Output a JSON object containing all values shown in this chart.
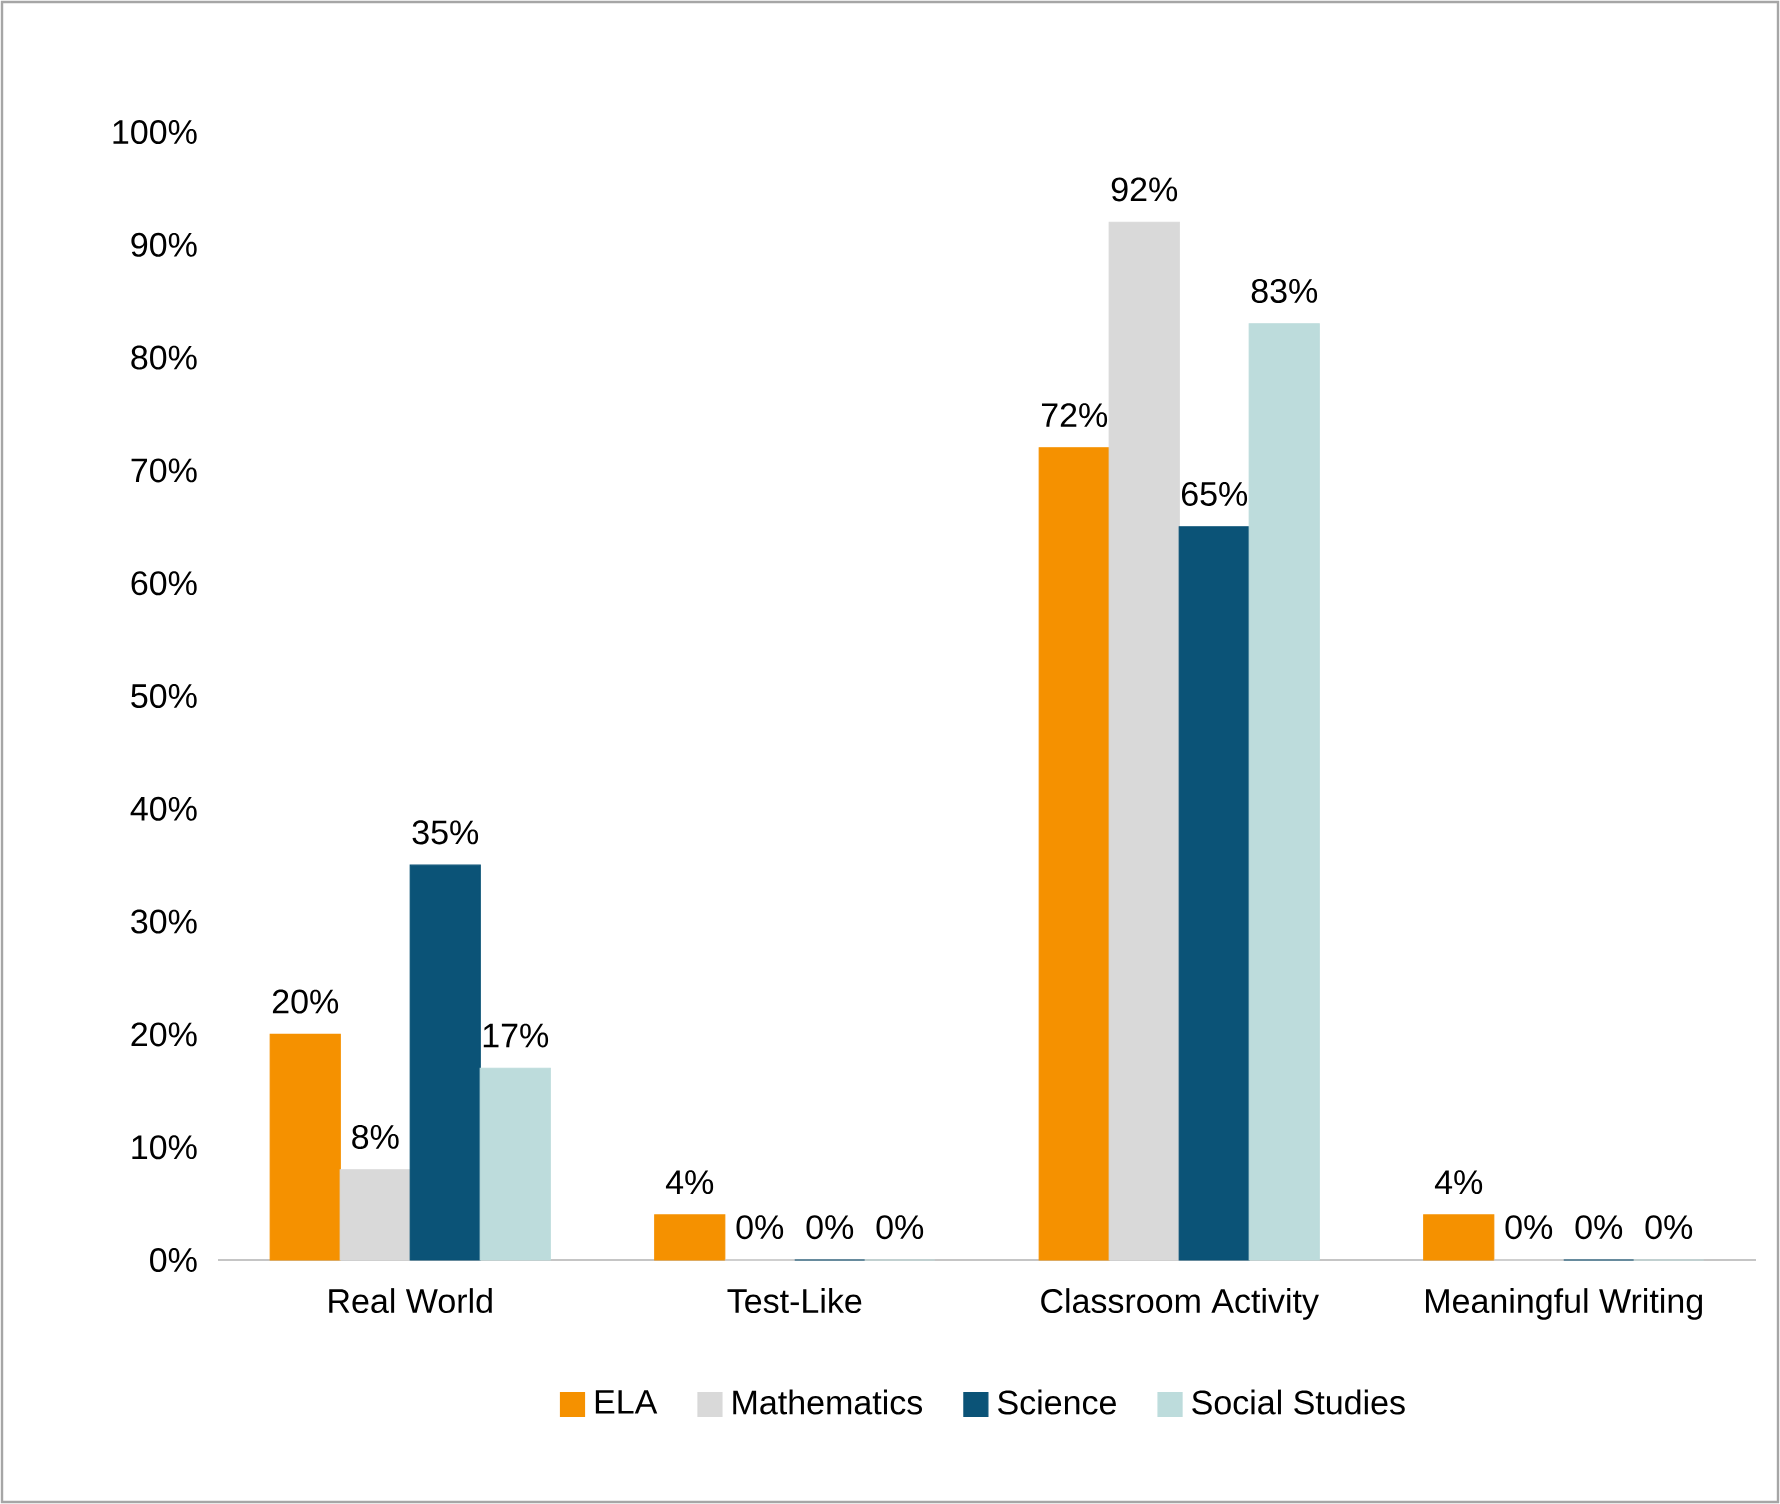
{
  "chart_data": {
    "type": "bar",
    "categories": [
      "Real World",
      "Test-Like",
      "Classroom Activity",
      "Meaningful Writing"
    ],
    "series": [
      {
        "name": "ELA",
        "color": "#f59100",
        "values": [
          20,
          4,
          72,
          4
        ],
        "value_labels": [
          "20%",
          "4%",
          "72%",
          "4%"
        ]
      },
      {
        "name": "Mathematics",
        "color": "#d9d9d9",
        "values": [
          8,
          0,
          92,
          0
        ],
        "value_labels": [
          "8%",
          "0%",
          "92%",
          "0%"
        ]
      },
      {
        "name": "Science",
        "color": "#0b5377",
        "values": [
          35,
          0,
          65,
          0
        ],
        "value_labels": [
          "35%",
          "0%",
          "65%",
          "0%"
        ]
      },
      {
        "name": "Social Studies",
        "color": "#bddcdc",
        "values": [
          17,
          0,
          83,
          0
        ],
        "value_labels": [
          "17%",
          "0%",
          "83%",
          "0%"
        ]
      }
    ],
    "ylim": [
      0,
      100
    ],
    "yticks": [
      {
        "value": 0,
        "label": "0%"
      },
      {
        "value": 10,
        "label": "10%"
      },
      {
        "value": 20,
        "label": "20%"
      },
      {
        "value": 30,
        "label": "30%"
      },
      {
        "value": 40,
        "label": "40%"
      },
      {
        "value": 50,
        "label": "50%"
      },
      {
        "value": 60,
        "label": "60%"
      },
      {
        "value": 70,
        "label": "70%"
      },
      {
        "value": 80,
        "label": "80%"
      },
      {
        "value": 90,
        "label": "90%"
      },
      {
        "value": 100,
        "label": "100%"
      }
    ],
    "grid": false,
    "legend": "bottom"
  }
}
